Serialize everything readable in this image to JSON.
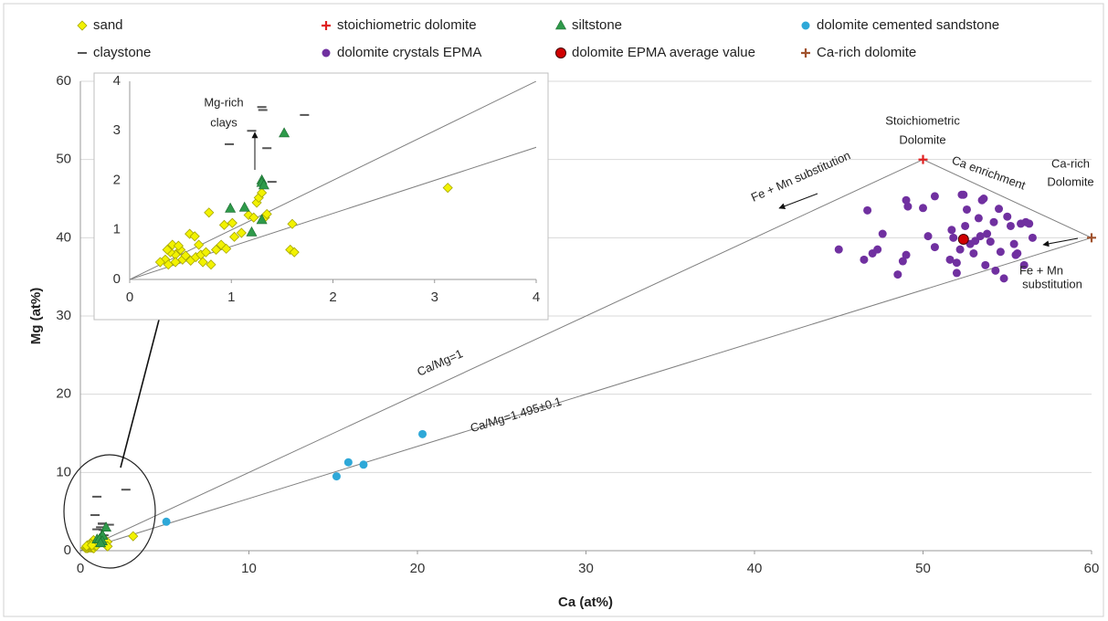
{
  "chart_data": {
    "type": "scatter",
    "x_label": "Ca (at%)",
    "y_label": "Mg (at%)",
    "xlim": [
      0,
      60
    ],
    "ylim": [
      0,
      60
    ],
    "xticks": [
      0,
      10,
      20,
      30,
      40,
      50,
      60
    ],
    "yticks": [
      0,
      10,
      20,
      30,
      40,
      50,
      60
    ],
    "grid": true,
    "inset": {
      "xlim": [
        0,
        4
      ],
      "ylim": [
        0,
        4
      ],
      "xticks": [
        0,
        1,
        2,
        3,
        4
      ],
      "yticks": [
        0,
        1,
        2,
        3,
        4
      ]
    },
    "series": [
      {
        "name": "sand",
        "marker": "diamond",
        "color": "#f2f200",
        "x": [
          0.78,
          0.59,
          0.64,
          0.93,
          1.01,
          1.03,
          1.1,
          1.17,
          1.22,
          1.33,
          1.35,
          1.25,
          1.27,
          1.3,
          1.6,
          1.58,
          1.62,
          3.13,
          0.5,
          0.45,
          0.4,
          0.35,
          0.3,
          0.38,
          0.45,
          0.52,
          0.55,
          0.6,
          0.65,
          0.7,
          0.75,
          0.72,
          0.8,
          0.85,
          0.9,
          0.95,
          0.42,
          0.48,
          0.37,
          0.68
        ],
        "y": [
          1.35,
          0.92,
          0.87,
          1.1,
          1.14,
          0.86,
          0.94,
          1.3,
          1.25,
          1.25,
          1.32,
          1.55,
          1.65,
          1.75,
          1.12,
          0.6,
          0.55,
          1.85,
          0.6,
          0.5,
          0.55,
          0.4,
          0.35,
          0.3,
          0.35,
          0.4,
          0.48,
          0.38,
          0.45,
          0.5,
          0.55,
          0.35,
          0.3,
          0.6,
          0.7,
          0.62,
          0.7,
          0.68,
          0.6,
          0.7
        ]
      },
      {
        "name": "claystone",
        "marker": "dash",
        "color": "#555555",
        "x": [
          1.3,
          1.31,
          1.72,
          0.98,
          1.35,
          1.4,
          0.98,
          2.7,
          0.87,
          1.2
        ],
        "y": [
          3.48,
          3.42,
          3.32,
          2.73,
          2.65,
          1.97,
          6.9,
          7.8,
          4.55,
          3.0
        ]
      },
      {
        "name": "stoichiometric dolomite",
        "marker": "plus",
        "color": "#e02020",
        "x": [
          50
        ],
        "y": [
          50
        ]
      },
      {
        "name": "dolomite crystals EPMA",
        "marker": "circle",
        "color": "#7030a0",
        "x": [
          45,
          46.5,
          46.7,
          47,
          47.3,
          47.6,
          48.5,
          48.8,
          49,
          49,
          49.1,
          50,
          50.7,
          50.7,
          51.6,
          51.7,
          51.8,
          52,
          52,
          52.2,
          52.3,
          52.4,
          52.5,
          52.6,
          52.8,
          53,
          53.1,
          53.3,
          53.4,
          53.5,
          53.6,
          53.7,
          53.8,
          54,
          54.2,
          54.3,
          54.5,
          54.6,
          54.8,
          55,
          55.2,
          55.4,
          55.5,
          55.6,
          55.8,
          56,
          56.1,
          56.3,
          56.5,
          50.3
        ],
        "y": [
          38.5,
          37.2,
          43.5,
          38,
          38.5,
          40.5,
          35.3,
          37,
          37.8,
          44.8,
          44,
          43.8,
          45.3,
          38.8,
          37.2,
          41,
          40,
          35.5,
          36.8,
          38.5,
          45.5,
          45.5,
          41.5,
          43.6,
          39.2,
          38,
          39.6,
          42.5,
          40.2,
          44.8,
          45,
          36.5,
          40.5,
          39.5,
          42,
          35.8,
          43.7,
          38.2,
          34.8,
          42.7,
          41.5,
          39.2,
          37.8,
          38,
          41.8,
          36.5,
          42,
          41.8,
          40,
          40.2
        ]
      },
      {
        "name": "siltstone",
        "marker": "triangle",
        "color": "#2e9a4a",
        "x": [
          1.52,
          1.3,
          1.3,
          1.32,
          0.99,
          1.13,
          1.3,
          1.2
        ],
        "y": [
          2.95,
          2.0,
          1.95,
          1.9,
          1.43,
          1.45,
          1.2,
          0.95
        ]
      },
      {
        "name": "dolomite EPMA average value",
        "marker": "bigcircle",
        "color": "#d00000",
        "x": [
          52.4
        ],
        "y": [
          39.8
        ]
      },
      {
        "name": "dolomite cemented sandstone",
        "marker": "circle",
        "color": "#2ea8d8",
        "x": [
          5.1,
          15.2,
          15.9,
          16.8,
          20.3
        ],
        "y": [
          3.7,
          9.5,
          11.3,
          11,
          14.9
        ]
      },
      {
        "name": "Ca-rich dolomite",
        "marker": "plus",
        "color": "#a0522d",
        "x": [
          60
        ],
        "y": [
          40
        ]
      }
    ],
    "lines": [
      {
        "x": [
          0,
          50
        ],
        "y": [
          0,
          50
        ]
      },
      {
        "x": [
          0,
          60
        ],
        "y": [
          0,
          40
        ]
      },
      {
        "x": [
          50,
          60
        ],
        "y": [
          50,
          40
        ]
      }
    ],
    "annotations": [
      "Stoichiometric",
      "Dolomite",
      "Ca enrichment",
      "Ca-rich",
      "Dolomite",
      "Fe + Mn substitution",
      "Fe + Mn",
      "substitution",
      "Ca/Mg=1",
      "Ca/Mg=1.495±0.1",
      "Mg-rich",
      "clays"
    ]
  }
}
